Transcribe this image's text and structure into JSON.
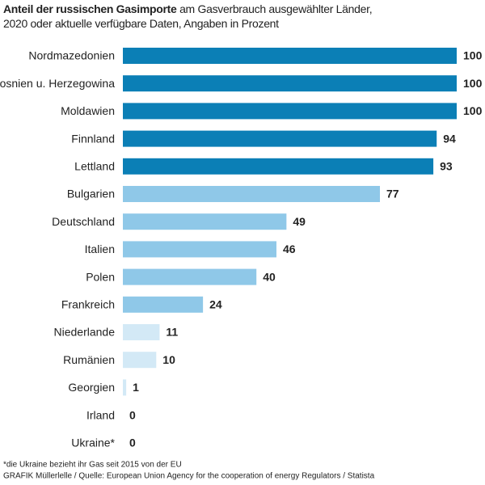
{
  "chart_data": {
    "type": "hbar",
    "title": "Anteil der russischen Gasimporte",
    "subtitle": "am Gasverbrauch ausgewählter Länder, 2020 oder aktuelle verfügbare Daten, Angaben in Prozent",
    "categories": [
      "Nordmazedonien",
      "Bosnien u. Herzegowina",
      "Moldawien",
      "Finnland",
      "Lettland",
      "Bulgarien",
      "Deutschland",
      "Italien",
      "Polen",
      "Frankreich",
      "Niederlande",
      "Rumänien",
      "Georgien",
      "Irland",
      "Ukraine*"
    ],
    "values": [
      100,
      100,
      100,
      94,
      93,
      77,
      49,
      46,
      40,
      24,
      11,
      10,
      1,
      0,
      0
    ],
    "colors": [
      "#0b7fb6",
      "#0b7fb6",
      "#0b7fb6",
      "#0b7fb6",
      "#0b7fb6",
      "#8fc8e8",
      "#8fc8e8",
      "#8fc8e8",
      "#8fc8e8",
      "#8fc8e8",
      "#d3e9f6",
      "#d3e9f6",
      "#d3e9f6",
      "#d3e9f6",
      "#d3e9f6"
    ],
    "xlim": [
      0,
      100
    ],
    "note": "*die Ukraine bezieht ihr Gas seit 2015 von der EU",
    "source": "GRAFIK Müllerlelle / Quelle: European Union Agency for the cooperation of energy Regulators / Statista"
  }
}
